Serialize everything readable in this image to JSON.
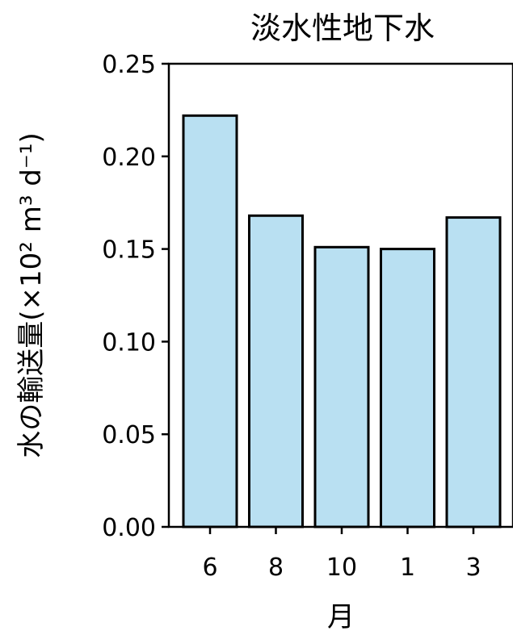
{
  "chart_data": {
    "type": "bar",
    "title": "淡水性地下水",
    "xlabel": "月",
    "ylabel": "水の輸送量(×10² m³ d⁻¹)",
    "categories": [
      "6",
      "8",
      "10",
      "1",
      "3"
    ],
    "values": [
      0.222,
      0.168,
      0.151,
      0.15,
      0.167
    ],
    "ylim": [
      0,
      0.25
    ],
    "yticks": [
      "0.00",
      "0.05",
      "0.10",
      "0.15",
      "0.20",
      "0.25"
    ],
    "bar_color": "#b9e0f2",
    "grid": false
  }
}
